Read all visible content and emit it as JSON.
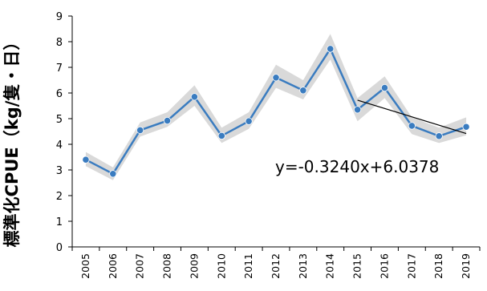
{
  "chart_data": {
    "type": "line",
    "title": "",
    "xlabel": "",
    "ylabel": "標準化CPUE（kg/隻・日）",
    "ylim": [
      0,
      9
    ],
    "yticks": [
      "0",
      "1",
      "2",
      "3",
      "4",
      "5",
      "6",
      "7",
      "8",
      "9"
    ],
    "categories": [
      "2005",
      "2006",
      "2007",
      "2008",
      "2009",
      "2010",
      "2011",
      "2012",
      "2013",
      "2014",
      "2015",
      "2016",
      "2017",
      "2018",
      "2019"
    ],
    "series": [
      {
        "name": "",
        "color": "#3a7cc0",
        "values": [
          3.4,
          2.85,
          4.55,
          4.92,
          5.85,
          4.33,
          4.9,
          6.6,
          6.1,
          7.72,
          5.35,
          6.2,
          4.72,
          4.32,
          4.68
        ]
      }
    ],
    "confidence_band": {
      "color": "#d9d9d9",
      "lower": [
        3.15,
        2.6,
        4.3,
        4.68,
        5.5,
        4.05,
        4.6,
        6.2,
        5.75,
        7.3,
        4.9,
        5.8,
        4.4,
        4.05,
        4.35
      ],
      "upper": [
        3.7,
        3.1,
        4.85,
        5.25,
        6.3,
        4.65,
        5.25,
        7.1,
        6.5,
        8.3,
        5.8,
        6.65,
        5.05,
        4.65,
        5.05
      ]
    },
    "trendline": {
      "color": "#000000",
      "from_category": "2015",
      "to_category": "2019",
      "start_value": 5.72,
      "end_value": 4.42,
      "equation": "y=-0.3240x+6.0378"
    },
    "grid": false,
    "legend": "none"
  }
}
